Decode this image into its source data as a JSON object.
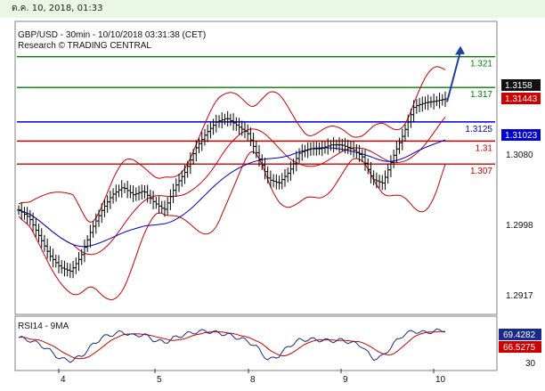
{
  "header": {
    "timestamp": "ต.ค. 10, 2018, 01:33"
  },
  "chart_data": {
    "type": "candlestick",
    "title": "GBP/USD - 30min - 10/10/2018 03:31:38 (CET)",
    "subtitle": "Research © TRADING CENTRAL",
    "ylim": [
      1.2875,
      1.3255
    ],
    "y_ticks": [
      "1.3080",
      "1.2998",
      "1.2917"
    ],
    "x_ticks": [
      "4",
      "5",
      "8",
      "9",
      "10"
    ],
    "current_price": "1.3158",
    "price_tag_2": "1.31443",
    "price_tag_3": "1.31023",
    "projection": {
      "from": 1.3151,
      "to": 1.3224
    },
    "levels": [
      {
        "label": "1.321",
        "value": 1.321,
        "color": "#008000"
      },
      {
        "label": "1.317",
        "value": 1.317,
        "color": "#008000"
      },
      {
        "label": "1.3125",
        "value": 1.3125,
        "color": "#0000cc"
      },
      {
        "label": "1.31",
        "value": 1.31,
        "color": "#cc0000"
      },
      {
        "label": "1.307",
        "value": 1.307,
        "color": "#cc0000"
      }
    ],
    "price_anchors": [
      1.301,
      1.3,
      1.2975,
      1.295,
      1.2935,
      1.293,
      1.295,
      1.2985,
      1.301,
      1.303,
      1.304,
      1.303,
      1.3035,
      1.302,
      1.301,
      1.304,
      1.306,
      1.309,
      1.311,
      1.3125,
      1.313,
      1.312,
      1.311,
      1.308,
      1.305,
      1.3045,
      1.306,
      1.3085,
      1.309,
      1.309,
      1.3095,
      1.3095,
      1.309,
      1.308,
      1.305,
      1.3045,
      1.308,
      1.311,
      1.3145,
      1.315,
      1.3152,
      1.3155
    ],
    "rsi": {
      "title": "RSI14 - 9MA",
      "rsi_value": "69.4282",
      "ma_value": "66.5275",
      "tick_label": "30",
      "ylim": [
        20,
        82
      ],
      "anchors": [
        58,
        55,
        50,
        42,
        32,
        30,
        35,
        48,
        58,
        62,
        65,
        60,
        62,
        55,
        52,
        58,
        62,
        65,
        66,
        64,
        62,
        58,
        54,
        45,
        30,
        36,
        48,
        55,
        56,
        55,
        54,
        55,
        52,
        48,
        32,
        35,
        50,
        62,
        66,
        64,
        66,
        67
      ]
    }
  }
}
